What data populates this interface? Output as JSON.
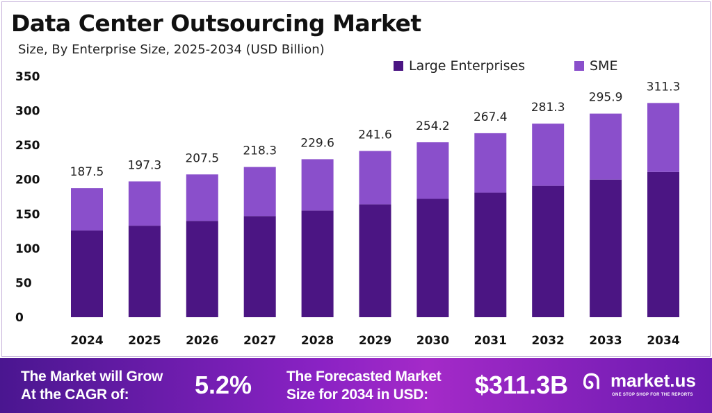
{
  "chart_data": {
    "type": "bar",
    "stacked": true,
    "title": "Data Center Outsourcing Market",
    "subtitle": "Size, By Enterprise Size, 2025-2034 (USD Billion)",
    "categories": [
      "2024",
      "2025",
      "2026",
      "2027",
      "2028",
      "2029",
      "2030",
      "2031",
      "2032",
      "2033",
      "2034"
    ],
    "series": [
      {
        "name": "Large Enterprises",
        "color": "#4b1583",
        "values": [
          126,
          133,
          140,
          147,
          155,
          164,
          172,
          181,
          191,
          200,
          211
        ]
      },
      {
        "name": "SME",
        "color": "#8a4fcb",
        "values": [
          61.5,
          64.3,
          67.5,
          71.3,
          74.6,
          77.6,
          82.2,
          86.4,
          90.3,
          95.9,
          100.3
        ]
      }
    ],
    "totals": [
      "187.5",
      "197.3",
      "207.5",
      "218.3",
      "229.6",
      "241.6",
      "254.2",
      "267.4",
      "281.3",
      "295.9",
      "311.3"
    ],
    "yticks": [
      "0",
      "50",
      "100",
      "150",
      "200",
      "250",
      "300",
      "350"
    ],
    "ylim": [
      0,
      350
    ],
    "grid": false,
    "legend": "top-right"
  },
  "banner": {
    "cagr_label_1": "The Market will Grow",
    "cagr_label_2": "At the CAGR of:",
    "cagr_value": "5.2%",
    "forecast_label_1": "The Forecasted Market",
    "forecast_label_2": "Size for 2034 in USD:",
    "forecast_value": "$311.3B",
    "logo_text": "market.us",
    "logo_tagline": "ONE STOP SHOP FOR THE REPORTS"
  }
}
